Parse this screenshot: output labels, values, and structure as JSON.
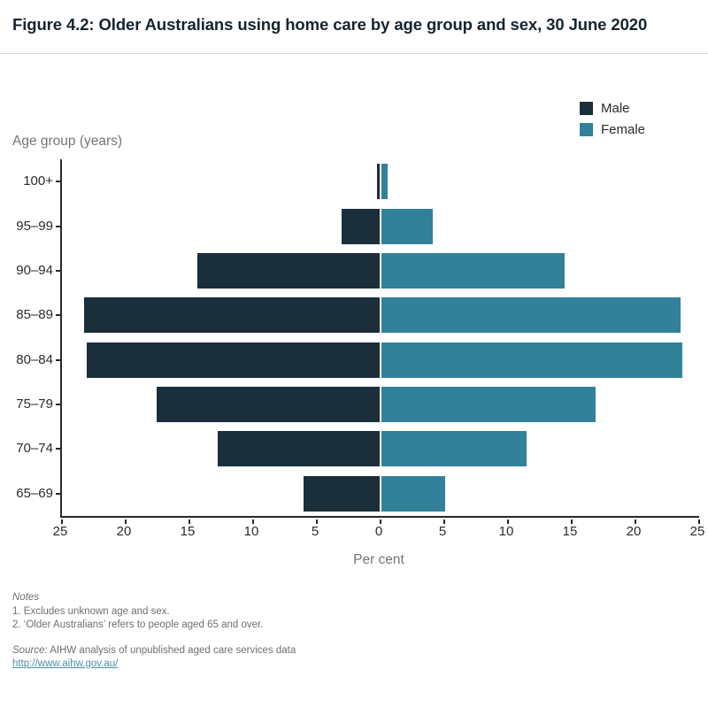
{
  "title": "Figure 4.2: Older Australians using home care by age group and sex, 30 June 2020",
  "legend": {
    "male_label": "Male",
    "female_label": "Female"
  },
  "axis": {
    "y_title": "Age group (years)",
    "x_title": "Per cent",
    "x_tick_labels": [
      "25",
      "20",
      "15",
      "10",
      "5",
      "0",
      "5",
      "10",
      "15",
      "20",
      "25"
    ]
  },
  "chart_data": {
    "type": "bar",
    "subtype": "population-pyramid",
    "title": "Figure 4.2: Older Australians using home care by age group and sex, 30 June 2020",
    "categories": [
      "100+",
      "95–99",
      "90–94",
      "85–89",
      "80–84",
      "75–79",
      "70–74",
      "65–69"
    ],
    "series": [
      {
        "name": "Male",
        "color": "#1A2F3A",
        "values": [
          0.2,
          3.0,
          14.3,
          23.2,
          23.0,
          17.5,
          12.7,
          6.0
        ]
      },
      {
        "name": "Female",
        "color": "#32819B",
        "values": [
          0.5,
          4.0,
          14.4,
          23.5,
          23.6,
          16.8,
          11.4,
          5.0
        ]
      }
    ],
    "xlabel": "Per cent",
    "ylabel": "Age group (years)",
    "xlim": [
      -25,
      25
    ],
    "x_tick_values": [
      -25,
      -20,
      -15,
      -10,
      -5,
      0,
      5,
      10,
      15,
      20,
      25
    ],
    "grid": false,
    "legend_position": "top-right"
  },
  "notes": {
    "heading": "Notes",
    "items": [
      "1. Excludes unknown age and sex.",
      "2. ‘Older Australians’ refers to people aged 65 and over."
    ],
    "source_label": "Source:",
    "source_text": " AIHW analysis of unpublished aged care services data",
    "link": "http://www.aihw.gov.au/"
  }
}
